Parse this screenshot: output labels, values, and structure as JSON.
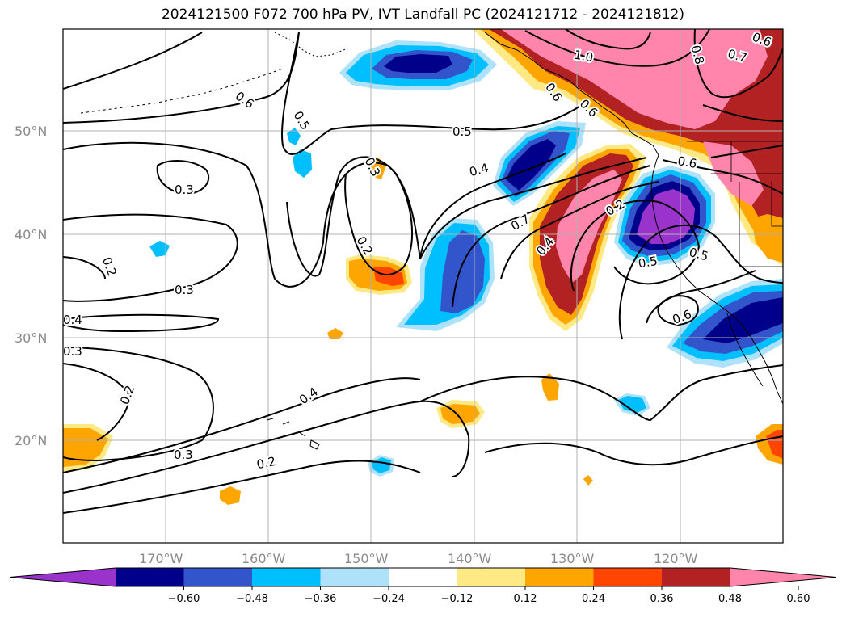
{
  "title": "2024121500 F072 700 hPa PV, IVT Landfall PC (2024121712 - 2024121812)",
  "map": {
    "lat_labels": [
      "50°N",
      "40°N",
      "30°N",
      "20°N"
    ],
    "lon_labels": [
      "170°W",
      "160°W",
      "150°W",
      "140°W",
      "130°W",
      "120°W"
    ],
    "contour_labels": [
      "0.6",
      "0.5",
      "0.5",
      "0.3",
      "0.3",
      "0.4",
      "0.2",
      "0.2",
      "0.3",
      "0.4",
      "0.4",
      "0.3",
      "0.2",
      "0.3",
      "0.2",
      "0.7",
      "0.4",
      "0.2",
      "0.5",
      "0.6",
      "1.0",
      "0.8",
      "0.7",
      "0.6",
      "0.6",
      "0.6",
      "0.6",
      "0.5"
    ]
  },
  "colorbar": {
    "ticks": [
      "−0.60",
      "−0.48",
      "−0.36",
      "−0.24",
      "−0.12",
      "0.12",
      "0.24",
      "0.36",
      "0.48",
      "0.60"
    ],
    "colors": [
      "#9933cc",
      "#00008b",
      "#3355cc",
      "#00bfff",
      "#aee2fa",
      "#ffffff",
      "#ffe985",
      "#ffa500",
      "#ff4500",
      "#b22222",
      "#ff85ad"
    ]
  },
  "shading_colors": {
    "neg_extreme": "#9933cc",
    "neg_dark": "#00008b",
    "neg_mid": "#3355cc",
    "neg_light": "#00bfff",
    "neg_pale": "#aee2fa",
    "pos_pale": "#ffe985",
    "pos_light": "#ffa500",
    "pos_mid": "#ff4500",
    "pos_dark": "#b22222",
    "pos_extreme": "#ff85ad"
  }
}
